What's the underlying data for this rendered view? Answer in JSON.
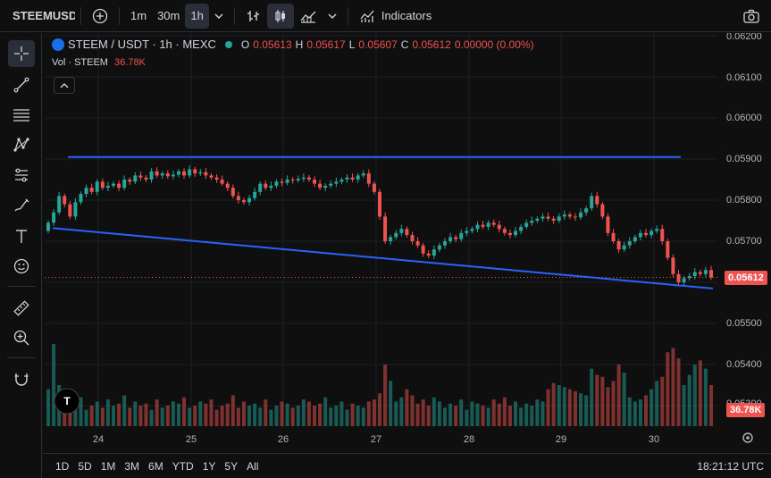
{
  "toolbar": {
    "symbol": "STEEMUSDT",
    "intervals": [
      "1m",
      "30m",
      "1h"
    ],
    "active_interval": "1h",
    "indicators_label": "Indicators"
  },
  "legend": {
    "pair": "STEEM / USDT · 1h · MEXC",
    "o_label": "O",
    "o": "0.05613",
    "h_label": "H",
    "h": "0.05617",
    "l_label": "L",
    "l": "0.05607",
    "c_label": "C",
    "c": "0.05612",
    "change": "0.00000 (0.00%)"
  },
  "volume_legend": {
    "label": "Vol · STEEM",
    "value": "36.78K"
  },
  "price_axis": {
    "ticks": [
      "0.06200",
      "0.06100",
      "0.06000",
      "0.05900",
      "0.05800",
      "0.05700",
      "0.05500",
      "0.05400",
      "0.05300"
    ],
    "current_price": "0.05612",
    "current_volume": "36.78K"
  },
  "time_axis": {
    "labels": [
      "24",
      "25",
      "26",
      "27",
      "28",
      "29",
      "30"
    ]
  },
  "bottom": {
    "ranges": [
      "1D",
      "5D",
      "1M",
      "3M",
      "6M",
      "YTD",
      "1Y",
      "5Y",
      "All"
    ],
    "clock": "18:21:12 UTC"
  },
  "colors": {
    "up": "#26a69a",
    "down": "#ef5350",
    "trendline": "#2962ff",
    "accent": "#2962ff"
  },
  "chart_data": {
    "type": "candlestick",
    "symbol": "STEEM / USDT",
    "interval": "1h",
    "exchange": "MEXC",
    "last_close": 0.05612,
    "ylim": [
      0.0525,
      0.0625
    ],
    "trendlines": [
      {
        "from": [
          "23",
          0.05905
        ],
        "to": [
          "30",
          0.05905
        ]
      },
      {
        "from": [
          "23",
          0.05732
        ],
        "to": [
          "30",
          0.05585
        ]
      }
    ],
    "closes": [
      0.05745,
      0.0577,
      0.0581,
      0.0579,
      0.0576,
      0.05795,
      0.05815,
      0.0583,
      0.0582,
      0.05845,
      0.0583,
      0.05835,
      0.0584,
      0.0583,
      0.0585,
      0.05845,
      0.0586,
      0.05855,
      0.0585,
      0.0587,
      0.0586,
      0.05865,
      0.05858,
      0.05862,
      0.0587,
      0.0586,
      0.05875,
      0.05865,
      0.05868,
      0.0586,
      0.05855,
      0.0585,
      0.0584,
      0.0583,
      0.0581,
      0.058,
      0.05795,
      0.05805,
      0.0582,
      0.0584,
      0.0583,
      0.05835,
      0.05845,
      0.05842,
      0.0585,
      0.05848,
      0.05852,
      0.05855,
      0.0585,
      0.0584,
      0.0583,
      0.05835,
      0.0584,
      0.05845,
      0.0585,
      0.05855,
      0.0585,
      0.0586,
      0.05865,
      0.0584,
      0.0582,
      0.0576,
      0.057,
      0.0571,
      0.0572,
      0.0573,
      0.05715,
      0.057,
      0.0569,
      0.0567,
      0.05665,
      0.0568,
      0.0569,
      0.057,
      0.0571,
      0.05705,
      0.0572,
      0.05725,
      0.0573,
      0.0574,
      0.05735,
      0.05745,
      0.0574,
      0.0573,
      0.0572,
      0.05715,
      0.05725,
      0.05735,
      0.05745,
      0.0575,
      0.05755,
      0.0576,
      0.05755,
      0.0575,
      0.0576,
      0.05765,
      0.0576,
      0.05758,
      0.0577,
      0.0578,
      0.0581,
      0.0579,
      0.0576,
      0.0572,
      0.057,
      0.0568,
      0.0569,
      0.057,
      0.0571,
      0.0572,
      0.05715,
      0.05725,
      0.0573,
      0.057,
      0.0566,
      0.0562,
      0.056,
      0.0561,
      0.05615,
      0.05625,
      0.0562,
      0.0563,
      0.05612
    ],
    "volumes": [
      18,
      40,
      20,
      13,
      9,
      11,
      14,
      8,
      10,
      12,
      9,
      13,
      10,
      11,
      15,
      9,
      12,
      10,
      11,
      8,
      13,
      9,
      10,
      12,
      11,
      14,
      9,
      10,
      12,
      11,
      13,
      8,
      10,
      11,
      15,
      9,
      12,
      10,
      11,
      9,
      13,
      8,
      10,
      12,
      11,
      9,
      10,
      13,
      12,
      10,
      11,
      14,
      9,
      10,
      12,
      8,
      11,
      10,
      9,
      12,
      13,
      16,
      30,
      22,
      12,
      14,
      18,
      15,
      11,
      13,
      10,
      14,
      12,
      9,
      11,
      10,
      13,
      8,
      12,
      11,
      10,
      9,
      13,
      11,
      14,
      10,
      12,
      9,
      11,
      10,
      13,
      12,
      18,
      21,
      20,
      19,
      18,
      17,
      16,
      15,
      28,
      25,
      24,
      19,
      22,
      30,
      26,
      14,
      12,
      13,
      15,
      18,
      22,
      24,
      36,
      38,
      33,
      20,
      25,
      30,
      32,
      28,
      20
    ]
  }
}
